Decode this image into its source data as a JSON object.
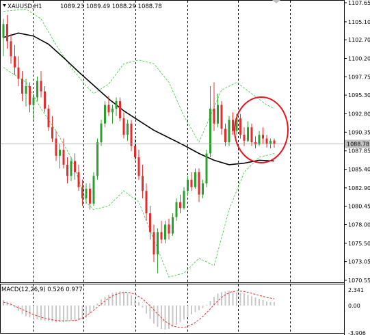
{
  "header": {
    "symbol_label": "XAUUSD,H1",
    "ohlc_values": "1089.23 1089.49 1088.29 1088.78"
  },
  "macd_panel": {
    "label": "MACD(12,26,9) 0.526 0.977",
    "axis_labels": [
      "2.341",
      "0.00",
      "-3.906"
    ]
  },
  "price_axis": {
    "labels": [
      "1107.65",
      "1105.10",
      "1102.70",
      "1100.20",
      "1097.75",
      "1095.30",
      "1092.80",
      "1090.35",
      "1087.85",
      "1085.40",
      "1082.90",
      "1080.45",
      "1078.00",
      "1075.50",
      "1073.05",
      "1070.55"
    ],
    "current_price_label": "1088.78"
  },
  "colors": {
    "bull_candle": "#2ca02c",
    "bear_candle": "#e32d2d",
    "ma_line": "#000000",
    "bollinger": "#33cc33",
    "grid": "#000000",
    "macd_histogram": "#c8c8c8",
    "macd_signal": "#e03030",
    "highlight_circle": "#e8141e"
  },
  "chart_data": {
    "type": "candlestick",
    "symbol": "XAUUSD",
    "timeframe": "H1",
    "current_price": 1088.78,
    "ylim": [
      1070.55,
      1107.65
    ],
    "grid": "vertical dashed lines",
    "overlays": [
      "moving average (black)",
      "Bollinger bands (green, dashed)"
    ],
    "annotation": "red circle around the latest candles",
    "candles": [
      [
        1103.0,
        1105.5,
        1100.5,
        1104.8
      ],
      [
        1104.8,
        1106.0,
        1101.5,
        1102.5
      ],
      [
        1102.5,
        1103.5,
        1099.5,
        1100.5
      ],
      [
        1100.5,
        1102.0,
        1098.0,
        1099.0
      ],
      [
        1099.0,
        1100.5,
        1096.5,
        1097.5
      ],
      [
        1097.5,
        1098.5,
        1094.5,
        1095.5
      ],
      [
        1095.5,
        1097.5,
        1093.8,
        1096.5
      ],
      [
        1096.5,
        1097.0,
        1093.0,
        1094.0
      ],
      [
        1094.0,
        1095.5,
        1092.0,
        1095.0
      ],
      [
        1095.0,
        1097.8,
        1094.5,
        1097.2
      ],
      [
        1097.2,
        1098.5,
        1095.0,
        1095.8
      ],
      [
        1095.8,
        1096.5,
        1093.0,
        1093.5
      ],
      [
        1093.5,
        1094.0,
        1090.5,
        1091.0
      ],
      [
        1091.0,
        1092.5,
        1089.0,
        1089.5
      ],
      [
        1089.5,
        1090.5,
        1086.5,
        1087.2
      ],
      [
        1087.2,
        1088.8,
        1085.5,
        1088.0
      ],
      [
        1088.0,
        1089.5,
        1085.5,
        1086.0
      ],
      [
        1086.0,
        1087.0,
        1083.5,
        1084.5
      ],
      [
        1084.5,
        1087.0,
        1083.8,
        1086.5
      ],
      [
        1086.5,
        1087.5,
        1084.0,
        1085.0
      ],
      [
        1085.0,
        1086.0,
        1082.5,
        1083.0
      ],
      [
        1083.0,
        1084.0,
        1080.5,
        1081.5
      ],
      [
        1081.5,
        1083.5,
        1080.8,
        1082.8
      ],
      [
        1082.8,
        1083.5,
        1080.0,
        1080.8
      ],
      [
        1080.8,
        1085.0,
        1080.5,
        1084.5
      ],
      [
        1084.5,
        1089.5,
        1084.0,
        1089.0
      ],
      [
        1089.0,
        1092.0,
        1088.5,
        1091.5
      ],
      [
        1091.5,
        1094.5,
        1091.0,
        1094.0
      ],
      [
        1094.0,
        1095.2,
        1092.5,
        1093.0
      ],
      [
        1093.0,
        1094.0,
        1091.5,
        1093.5
      ],
      [
        1093.5,
        1095.0,
        1092.5,
        1094.5
      ],
      [
        1094.5,
        1095.0,
        1091.8,
        1092.2
      ],
      [
        1092.2,
        1093.0,
        1089.5,
        1090.0
      ],
      [
        1090.0,
        1092.0,
        1089.2,
        1091.5
      ],
      [
        1091.5,
        1092.0,
        1087.8,
        1088.5
      ],
      [
        1088.5,
        1089.5,
        1086.5,
        1087.0
      ],
      [
        1087.0,
        1088.0,
        1084.0,
        1084.5
      ],
      [
        1084.5,
        1086.0,
        1081.5,
        1082.5
      ],
      [
        1082.5,
        1083.5,
        1078.5,
        1079.5
      ],
      [
        1079.5,
        1080.5,
        1076.0,
        1077.0
      ],
      [
        1077.0,
        1078.0,
        1073.0,
        1074.0
      ],
      [
        1074.0,
        1077.5,
        1071.5,
        1077.0
      ],
      [
        1077.0,
        1078.5,
        1075.5,
        1076.0
      ],
      [
        1076.0,
        1078.5,
        1075.5,
        1078.0
      ],
      [
        1078.0,
        1078.8,
        1076.0,
        1076.8
      ],
      [
        1076.8,
        1079.5,
        1076.5,
        1079.0
      ],
      [
        1079.0,
        1081.5,
        1078.5,
        1081.0
      ],
      [
        1081.0,
        1082.0,
        1079.5,
        1080.2
      ],
      [
        1080.2,
        1083.0,
        1080.0,
        1082.5
      ],
      [
        1082.5,
        1084.5,
        1082.0,
        1084.0
      ],
      [
        1084.0,
        1085.0,
        1082.5,
        1083.0
      ],
      [
        1083.0,
        1085.5,
        1082.8,
        1085.0
      ],
      [
        1085.0,
        1085.5,
        1081.0,
        1082.0
      ],
      [
        1082.0,
        1084.0,
        1081.5,
        1083.5
      ],
      [
        1083.5,
        1088.0,
        1083.0,
        1087.5
      ],
      [
        1087.5,
        1096.5,
        1087.0,
        1093.5
      ],
      [
        1093.5,
        1097.0,
        1090.5,
        1091.5
      ],
      [
        1091.5,
        1095.5,
        1091.0,
        1094.0
      ],
      [
        1094.0,
        1094.5,
        1090.0,
        1090.8
      ],
      [
        1090.8,
        1091.5,
        1088.5,
        1089.0
      ],
      [
        1089.0,
        1092.5,
        1088.5,
        1092.0
      ],
      [
        1092.0,
        1093.0,
        1090.0,
        1090.5
      ],
      [
        1090.5,
        1092.8,
        1090.0,
        1092.2
      ],
      [
        1092.2,
        1092.8,
        1089.5,
        1090.0
      ],
      [
        1090.0,
        1091.0,
        1088.5,
        1089.2
      ],
      [
        1089.2,
        1091.8,
        1089.0,
        1091.0
      ],
      [
        1091.0,
        1091.5,
        1088.5,
        1089.0
      ],
      [
        1089.0,
        1089.8,
        1088.2,
        1088.7
      ],
      [
        1088.7,
        1090.5,
        1088.5,
        1090.0
      ],
      [
        1090.0,
        1091.0,
        1088.8,
        1089.5
      ],
      [
        1089.5,
        1090.0,
        1088.3,
        1088.8
      ],
      [
        1088.8,
        1089.5,
        1088.2,
        1089.2
      ],
      [
        1089.23,
        1089.49,
        1088.29,
        1088.78
      ]
    ],
    "moving_average": [
      [
        0,
        1103.0
      ],
      [
        4,
        1103.6
      ],
      [
        8,
        1103.2
      ],
      [
        12,
        1102.1
      ],
      [
        16,
        1100.3
      ],
      [
        20,
        1098.4
      ],
      [
        24,
        1096.6
      ],
      [
        28,
        1094.8
      ],
      [
        32,
        1093.2
      ],
      [
        36,
        1091.9
      ],
      [
        40,
        1090.6
      ],
      [
        44,
        1089.6
      ],
      [
        48,
        1088.6
      ],
      [
        52,
        1087.5
      ],
      [
        56,
        1086.6
      ],
      [
        60,
        1086.0
      ],
      [
        64,
        1086.2
      ],
      [
        68,
        1086.6
      ],
      [
        72,
        1086.5
      ]
    ],
    "bollinger_upper": [
      [
        0,
        1106.5
      ],
      [
        6,
        1106.8
      ],
      [
        10,
        1105.5
      ],
      [
        14,
        1102.0
      ],
      [
        18,
        1099.0
      ],
      [
        22,
        1096.5
      ],
      [
        24,
        1095.5
      ],
      [
        28,
        1096.8
      ],
      [
        32,
        1099.5
      ],
      [
        36,
        1100.0
      ],
      [
        40,
        1099.5
      ],
      [
        44,
        1097.0
      ],
      [
        48,
        1092.5
      ],
      [
        52,
        1089.0
      ],
      [
        55,
        1092.5
      ],
      [
        58,
        1096.0
      ],
      [
        62,
        1097.0
      ],
      [
        66,
        1095.5
      ],
      [
        70,
        1094.0
      ],
      [
        72,
        1093.5
      ]
    ],
    "bollinger_lower": [
      [
        0,
        1099.0
      ],
      [
        6,
        1097.0
      ],
      [
        10,
        1093.5
      ],
      [
        14,
        1090.5
      ],
      [
        18,
        1087.0
      ],
      [
        22,
        1081.0
      ],
      [
        24,
        1080.0
      ],
      [
        28,
        1080.5
      ],
      [
        32,
        1082.5
      ],
      [
        36,
        1081.0
      ],
      [
        40,
        1076.0
      ],
      [
        44,
        1071.0
      ],
      [
        48,
        1071.5
      ],
      [
        52,
        1073.5
      ],
      [
        56,
        1072.5
      ],
      [
        60,
        1080.0
      ],
      [
        64,
        1085.0
      ],
      [
        68,
        1087.0
      ],
      [
        72,
        1087.5
      ]
    ],
    "macd": {
      "label": "MACD(12,26,9)",
      "main": 0.526,
      "signal_value": 0.977,
      "axis_range": [
        -3.906,
        2.341
      ],
      "histogram": [
        0.8,
        0.6,
        0.2,
        -0.3,
        -0.8,
        -1.3,
        -1.6,
        -1.8,
        -2.0,
        -2.1,
        -2.2,
        -2.3,
        -2.3,
        -2.4,
        -2.5,
        -2.5,
        -2.5,
        -2.4,
        -2.3,
        -2.3,
        -2.2,
        -2.1,
        -1.8,
        -1.2,
        -0.5,
        0.3,
        0.9,
        1.3,
        1.6,
        1.9,
        2.0,
        2.1,
        2.0,
        1.8,
        1.5,
        1.0,
        0.5,
        -0.3,
        -1.2,
        -2.0,
        -2.7,
        -3.2,
        -3.5,
        -3.6,
        -3.5,
        -3.2,
        -2.9,
        -2.5,
        -2.1,
        -1.7,
        -1.3,
        -1.0,
        -0.7,
        -0.4,
        0.1,
        0.7,
        1.3,
        1.8,
        2.0,
        2.1,
        2.2,
        2.1,
        2.0,
        1.9,
        1.8,
        1.6,
        1.4,
        1.2,
        1.0,
        0.8,
        0.6,
        0.55,
        0.5
      ],
      "signal": [
        0.5,
        0.2,
        -0.3,
        -0.8,
        -1.3,
        -1.7,
        -2.0,
        -2.2,
        -2.3,
        -2.3,
        -2.2,
        -1.8,
        -1.0,
        -0.1,
        0.8,
        1.5,
        1.9,
        2.0,
        1.7,
        1.0,
        0.0,
        -1.2,
        -2.3,
        -3.0,
        -3.3,
        -3.2,
        -2.7,
        -1.9,
        -0.8,
        0.4,
        1.4,
        2.0,
        2.2,
        2.1,
        1.8,
        1.5,
        1.2,
        1.0
      ]
    }
  }
}
